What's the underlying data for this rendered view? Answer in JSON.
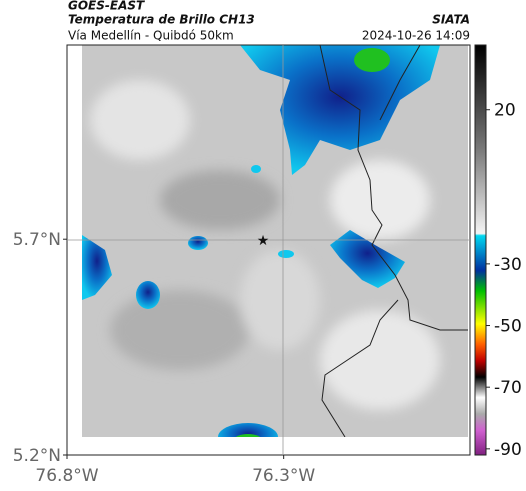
{
  "header": {
    "source": "GOES-EAST",
    "title": "Temperatura de Brillo CH13",
    "brand": "SIATA",
    "subtitle": "Vía Medellín - Quibdó 50km",
    "timestamp": "2024-10-26 14:09"
  },
  "map": {
    "lat_range": [
      5.2,
      6.15
    ],
    "lon_range": [
      -76.8,
      -75.87
    ],
    "lat_ticks": [
      {
        "value": 5.7,
        "label": "5.7°N"
      },
      {
        "value": 5.2,
        "label": "5.2°N"
      }
    ],
    "lon_ticks": [
      {
        "value": -76.8,
        "label": "76.8°W"
      },
      {
        "value": -76.3,
        "label": "76.3°W"
      }
    ]
  },
  "colorbar": {
    "range": [
      -92,
      41
    ],
    "ticks": [
      20,
      -30,
      -50,
      -70,
      -90
    ]
  }
}
